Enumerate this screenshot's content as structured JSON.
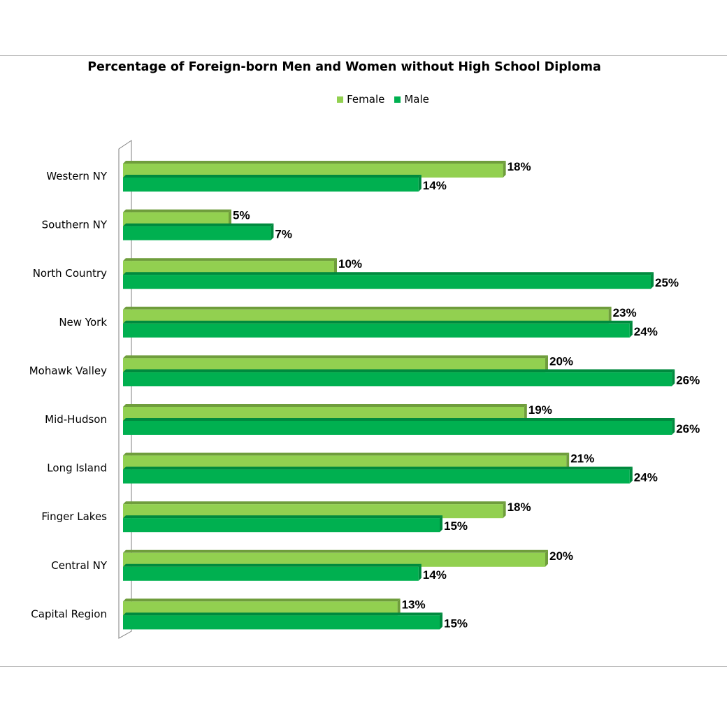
{
  "chart_data": {
    "type": "bar",
    "orientation": "horizontal",
    "title": "Percentage of Foreign-born Men and Women without High School Diploma",
    "categories": [
      "Western NY",
      "Southern NY",
      "North Country",
      "New York",
      "Mohawk Valley",
      "Mid-Hudson",
      "Long Island",
      "Finger Lakes",
      "Central NY",
      "Capital Region"
    ],
    "series": [
      {
        "name": "Female",
        "color": "#92d050",
        "values": [
          18,
          5,
          10,
          23,
          20,
          19,
          21,
          18,
          20,
          13
        ],
        "labels": [
          "18%",
          "5%",
          "10%",
          "23%",
          "20%",
          "19%",
          "21%",
          "18%",
          "20%",
          "13%"
        ]
      },
      {
        "name": "Male",
        "color": "#00b050",
        "values": [
          14,
          7,
          25,
          24,
          26,
          26,
          24,
          15,
          14,
          15
        ],
        "labels": [
          "14%",
          "7%",
          "25%",
          "24%",
          "26%",
          "26%",
          "24%",
          "15%",
          "14%",
          "15%"
        ]
      }
    ],
    "xlim": [
      0,
      28
    ],
    "grid": false,
    "legend_position": "top",
    "colors": {
      "female_shade": "#6f9d3c",
      "male_shade": "#008a3e",
      "axis": "#7f7f7f"
    }
  }
}
